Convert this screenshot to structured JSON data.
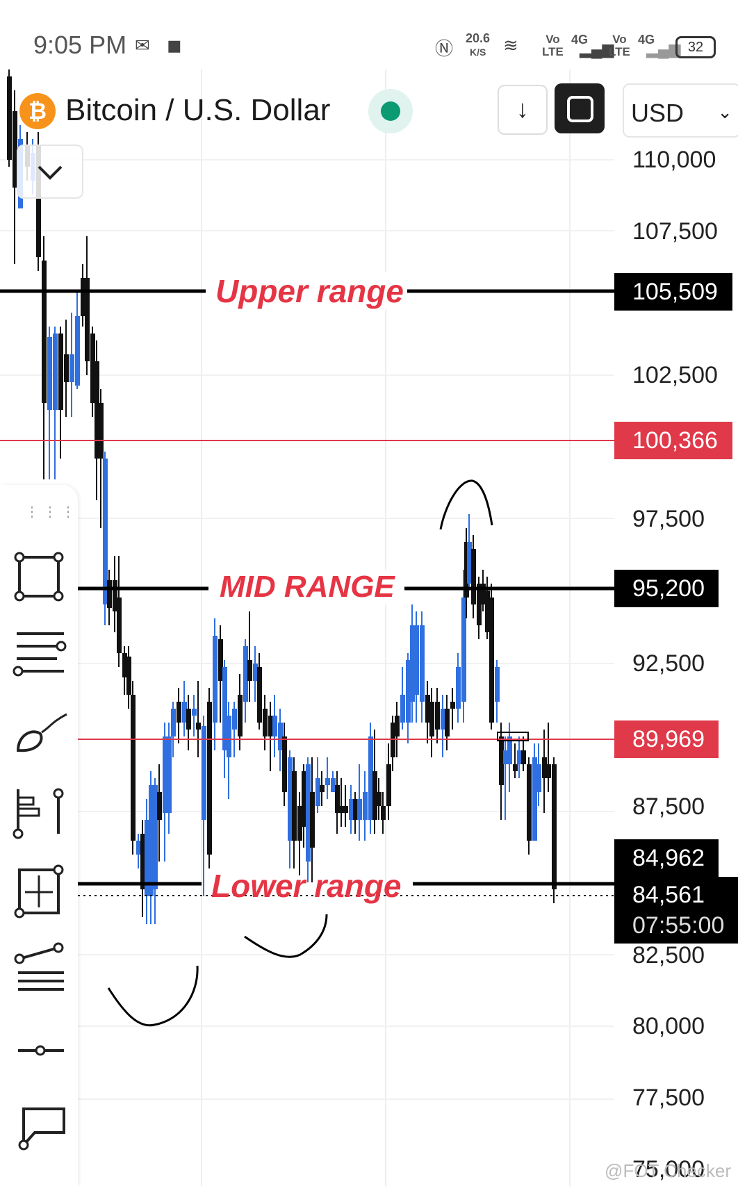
{
  "status_bar": {
    "time": "9:05 PM",
    "net_speed": "20.6",
    "net_unit": "K/S",
    "volte1": "Vo\nLTE",
    "volte2": "Vo\nLTE",
    "sig1": "4G",
    "sig2": "4G",
    "battery": "32"
  },
  "header": {
    "asset_icon": "bitcoin-icon",
    "title": "Bitcoin / U.S. Dollar",
    "currency": "USD"
  },
  "price_axis": {
    "ticks": [
      "110,000",
      "107,500",
      "102,500",
      "97,500",
      "92,500",
      "87,500",
      "82,500",
      "80,000",
      "77,500",
      "75,000"
    ]
  },
  "levels": {
    "upper": {
      "label": "Upper range",
      "price": "105,509"
    },
    "redline1": {
      "price": "100,366"
    },
    "mid": {
      "label": "MID RANGE",
      "price": "95,200"
    },
    "redline2": {
      "price": "89,969"
    },
    "lower": {
      "label": "Lower range",
      "price": "84,962"
    },
    "current": {
      "price": "84,561",
      "countdown": "07:55:00"
    }
  },
  "colors": {
    "up": "#2f6fe0",
    "down": "#111111",
    "red_line": "#e0394a",
    "live": "#0b9a72"
  },
  "watermark": "@FOT Checker"
}
